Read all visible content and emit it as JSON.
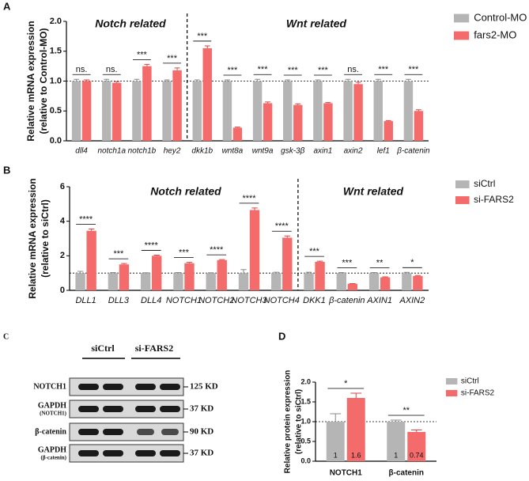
{
  "chart_data": [
    {
      "type": "bar",
      "label": "A",
      "ylabel": [
        "Relative mRNA expression",
        "(relative to Control-MO)"
      ],
      "annotations": [
        "Notch related",
        "Wnt related"
      ],
      "categories": [
        "dll4",
        "notch1a",
        "notch1b",
        "hey2",
        "dkk1b",
        "wnt8a",
        "wnt9a",
        "gsk-3β",
        "axin1",
        "axin2",
        "lef1",
        "β-catenin"
      ],
      "series": [
        {
          "name": "Control-MO",
          "color": "#b5b5b5",
          "values": [
            1.0,
            1.0,
            1.0,
            1.0,
            1.0,
            1.0,
            1.0,
            1.0,
            1.0,
            1.0,
            1.0,
            1.0
          ],
          "errors": [
            0.03,
            0.03,
            0.03,
            0.02,
            0.02,
            0.02,
            0.03,
            0.02,
            0.02,
            0.03,
            0.03,
            0.03
          ]
        },
        {
          "name": "fars2-MO",
          "color": "#f46b6b",
          "values": [
            1.0,
            0.97,
            1.25,
            1.18,
            1.55,
            0.22,
            0.63,
            0.6,
            0.63,
            0.95,
            0.33,
            0.5
          ],
          "errors": [
            0.02,
            0.02,
            0.03,
            0.04,
            0.04,
            0.01,
            0.02,
            0.02,
            0.01,
            0.03,
            0.01,
            0.02
          ]
        }
      ],
      "significance": [
        "ns.",
        "ns.",
        "***",
        "***",
        "***",
        "***",
        "***",
        "***",
        "***",
        "ns.",
        "***",
        "***"
      ],
      "reference_line": 1,
      "ylim": [
        0,
        2
      ],
      "yticks": [
        {
          "value": 0,
          "label": "0.0"
        },
        0.5,
        {
          "value": 1,
          "label": "1.0"
        },
        1.5,
        {
          "value": 2,
          "label": "2.0"
        }
      ]
    },
    {
      "type": "bar",
      "label": "B",
      "ylabel": [
        "Relative mRNA expression",
        "(relative to siCtrl)"
      ],
      "annotations": [
        "Notch related",
        "Wnt related"
      ],
      "categories": [
        "DLL1",
        "DLL3",
        "DLL4",
        "NOTCH1",
        "NOTCH2",
        "NOTCH3",
        "NOTCH4",
        "DKK1",
        "β-catenin",
        "AXIN1",
        "AXIN2"
      ],
      "series": [
        {
          "name": "siCtrl",
          "color": "#b5b5b5",
          "values": [
            1.0,
            1.0,
            1.0,
            1.0,
            1.0,
            1.0,
            1.0,
            1.0,
            1.0,
            1.0,
            1.0
          ],
          "errors": [
            0.1,
            0.03,
            0.02,
            0.03,
            0.02,
            0.2,
            0.05,
            0.05,
            0.03,
            0.03,
            0.04
          ]
        },
        {
          "name": "si-FARS2",
          "color": "#f46b6b",
          "values": [
            3.45,
            1.5,
            2.0,
            1.57,
            1.75,
            4.65,
            3.05,
            1.65,
            0.38,
            0.75,
            0.83
          ],
          "errors": [
            0.1,
            0.05,
            0.04,
            0.05,
            0.03,
            0.12,
            0.1,
            0.04,
            0.01,
            0.03,
            0.03
          ]
        }
      ],
      "significance": [
        "****",
        "***",
        "****",
        "***",
        "****",
        "****",
        "****",
        "***",
        "***",
        "**",
        "*"
      ],
      "reference_line": 1,
      "ylim": [
        0,
        6
      ],
      "yticks": [
        0,
        2,
        4,
        6
      ]
    },
    {
      "type": "bar",
      "label": "D",
      "ylabel": [
        "Relative protein expression",
        "(relative to siCtrl)"
      ],
      "annotations": [],
      "categories": [
        "NOTCH1",
        "β-catenin"
      ],
      "series": [
        {
          "name": "siCtrl",
          "color": "#b5b5b5",
          "values": [
            1,
            1
          ],
          "errors": [
            0.2,
            0.04
          ]
        },
        {
          "name": "si-FARS2",
          "color": "#f46b6b",
          "values": [
            1.6,
            0.74
          ],
          "errors": [
            0.12,
            0.05
          ]
        }
      ],
      "significance": [
        "*",
        "**"
      ],
      "reference_line": 1,
      "ylim": [
        0,
        2
      ],
      "yticks": [
        {
          "value": 0,
          "label": "0.0"
        },
        0.5,
        {
          "value": 1,
          "label": "1.0"
        },
        1.5,
        {
          "value": 2,
          "label": "2.0"
        }
      ]
    }
  ],
  "blot": {
    "label": "C",
    "groups": [
      "siCtrl",
      "si-FARS2"
    ],
    "rows": [
      {
        "name": "NOTCH1",
        "size": "125 KD"
      },
      {
        "name": "GAPDH",
        "sub": "(NOTCH1)",
        "size": "37 KD"
      },
      {
        "name": "β-catenin",
        "size": "90 KD"
      },
      {
        "name": "GAPDH",
        "sub": "(β-catenin)",
        "size": "37 KD"
      }
    ]
  }
}
